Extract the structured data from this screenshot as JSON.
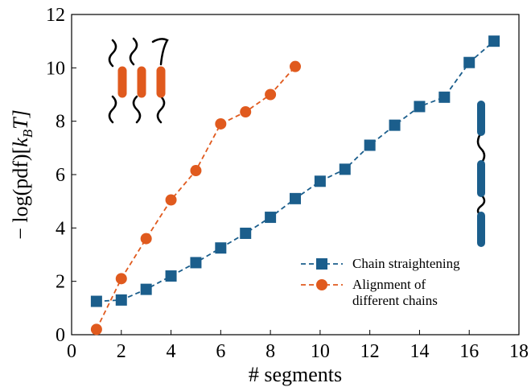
{
  "chart_data": {
    "type": "line",
    "xlabel": "# segments",
    "ylabel_parts": [
      "− log(pdf)[",
      "k",
      "B",
      "T]"
    ],
    "xlim": [
      0,
      18
    ],
    "ylim": [
      0,
      12
    ],
    "xticks": [
      0,
      2,
      4,
      6,
      8,
      10,
      12,
      14,
      16,
      18
    ],
    "yticks": [
      0,
      2,
      4,
      6,
      8,
      10,
      12
    ],
    "legend": "lower right",
    "series": [
      {
        "name": "Chain straightening",
        "color": "#1b5e8c",
        "marker": "square",
        "x": [
          1,
          2,
          3,
          4,
          5,
          6,
          7,
          8,
          9,
          10,
          11,
          12,
          13,
          14,
          15,
          16,
          17
        ],
        "values": [
          1.25,
          1.3,
          1.7,
          2.2,
          2.7,
          3.25,
          3.8,
          4.4,
          5.1,
          5.75,
          6.2,
          7.1,
          7.85,
          8.55,
          8.9,
          10.2,
          11.0
        ]
      },
      {
        "name": "Alignment of different chains",
        "color": "#e05a1e",
        "marker": "circle",
        "x": [
          1,
          2,
          3,
          4,
          5,
          6,
          7,
          8,
          9
        ],
        "values": [
          0.2,
          2.1,
          3.6,
          5.05,
          6.15,
          7.9,
          8.35,
          9.0,
          10.05
        ]
      }
    ]
  }
}
